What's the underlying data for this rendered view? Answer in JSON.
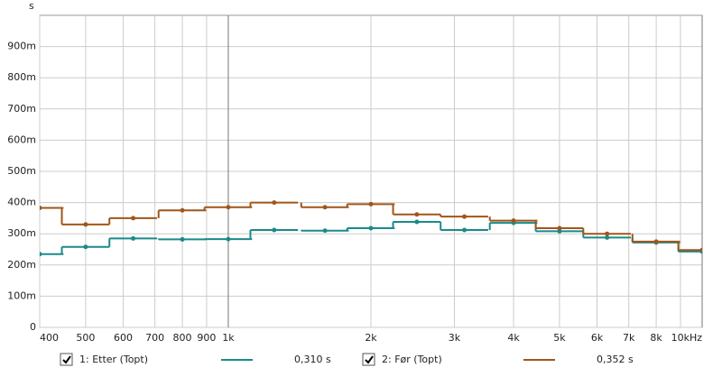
{
  "chart_data": {
    "type": "step",
    "y_unit": "s",
    "log_x": true,
    "grid": true,
    "categories": [
      400,
      500,
      630,
      800,
      1000,
      1250,
      1600,
      2000,
      2500,
      3150,
      4000,
      5000,
      6300,
      8000,
      10000
    ],
    "series": [
      {
        "name": "1: Etter (Topt)",
        "summary": "0,310 s",
        "color": "#1a8a8a",
        "values": [
          0.235,
          0.258,
          0.285,
          0.282,
          0.283,
          0.312,
          0.31,
          0.318,
          0.338,
          0.312,
          0.335,
          0.308,
          0.288,
          0.272,
          0.243
        ]
      },
      {
        "name": "2: Før (Topt)",
        "summary": "0,352 s",
        "color": "#a0561a",
        "values": [
          0.383,
          0.33,
          0.35,
          0.375,
          0.385,
          0.4,
          0.385,
          0.395,
          0.362,
          0.355,
          0.342,
          0.318,
          0.3,
          0.275,
          0.248
        ]
      }
    ],
    "xlim": [
      400,
      10000
    ],
    "ylim": [
      0,
      1
    ],
    "xticks": [
      400,
      500,
      600,
      700,
      800,
      900,
      {
        "value": 1000,
        "label": "1k"
      },
      {
        "value": 2000,
        "label": "2k"
      },
      {
        "value": 3000,
        "label": "3k"
      },
      {
        "value": 4000,
        "label": "4k"
      },
      {
        "value": 5000,
        "label": "5k"
      },
      {
        "value": 6000,
        "label": "6k"
      },
      {
        "value": 7000,
        "label": "7k"
      },
      {
        "value": 8000,
        "label": "8k"
      },
      {
        "value": 10000,
        "label": "10kHz"
      }
    ],
    "minor_xticks": [
      9000
    ],
    "yticks": [
      0,
      {
        "value": 0.1,
        "label": "100m"
      },
      {
        "value": 0.2,
        "label": "200m"
      },
      {
        "value": 0.3,
        "label": "300m"
      },
      {
        "value": 0.4,
        "label": "400m"
      },
      {
        "value": 0.5,
        "label": "500m"
      },
      {
        "value": 0.6,
        "label": "600m"
      },
      {
        "value": 0.7,
        "label": "700m"
      },
      {
        "value": 0.8,
        "label": "800m"
      },
      {
        "value": 0.9,
        "label": "900m"
      }
    ]
  }
}
